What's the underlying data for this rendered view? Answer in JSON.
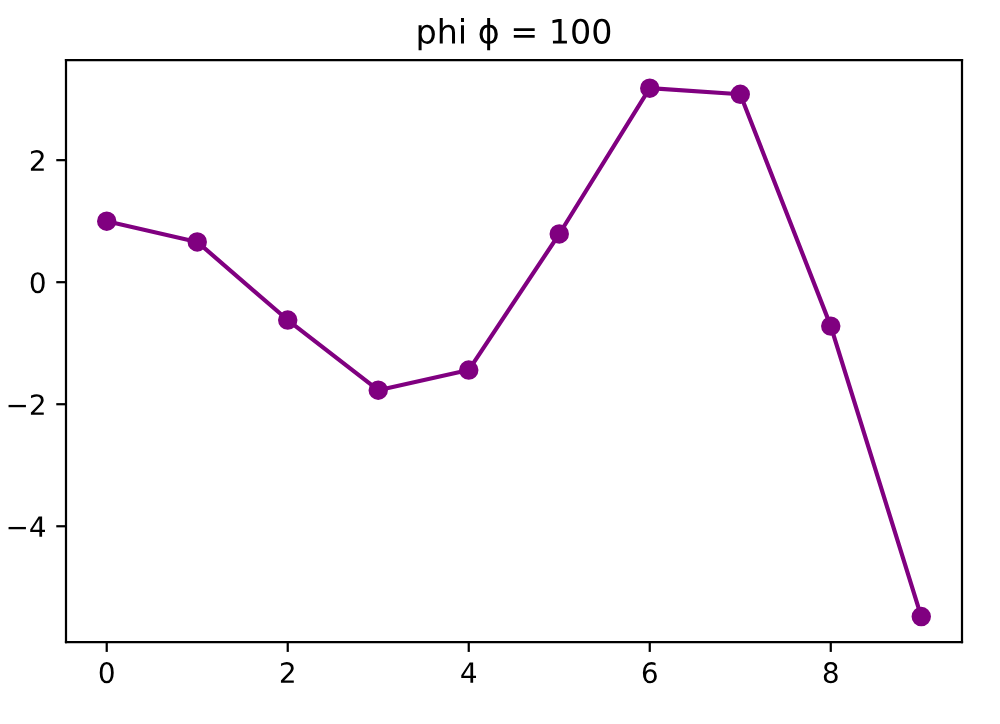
{
  "chart_data": {
    "type": "line",
    "title": "phi ϕ = 100",
    "x": [
      0,
      1,
      2,
      3,
      4,
      5,
      6,
      7,
      8,
      9
    ],
    "series": [
      {
        "color": "#800080",
        "values": [
          1.0,
          0.66,
          -0.62,
          -1.77,
          -1.44,
          0.79,
          3.18,
          3.08,
          -0.72,
          -5.48
        ]
      }
    ],
    "marker": "circle",
    "line_style": "solid",
    "grid": false,
    "legend": false,
    "xlim": [
      -0.45,
      9.45
    ],
    "xticks": [
      0,
      2,
      4,
      6,
      8
    ],
    "ylim": [
      -5.9,
      3.64
    ],
    "yticks": [
      {
        "value": -4,
        "label": "−4"
      },
      {
        "value": -2,
        "label": "−2"
      },
      0,
      2
    ]
  }
}
